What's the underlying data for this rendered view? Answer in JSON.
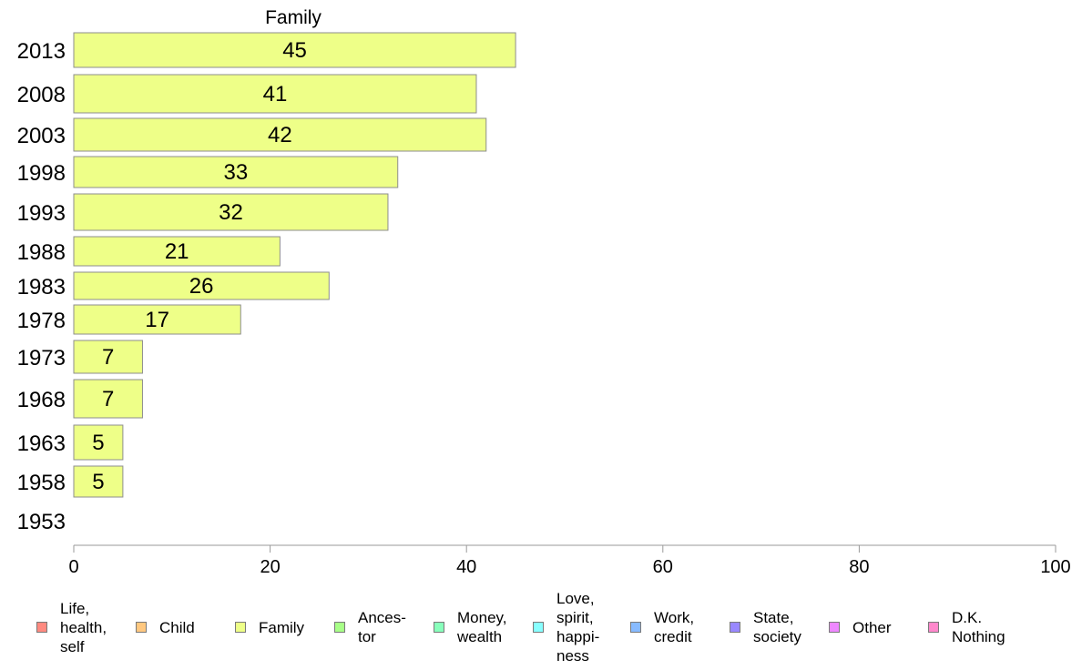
{
  "chart_data": {
    "type": "bar",
    "orientation": "horizontal",
    "title": "Family",
    "xlabel": "",
    "ylabel": "",
    "xlim": [
      0,
      100
    ],
    "x_ticks": [
      "0",
      "20",
      "40",
      "60",
      "80",
      "100"
    ],
    "categories": [
      "2013",
      "2008",
      "2003",
      "1998",
      "1993",
      "1988",
      "1983",
      "1978",
      "1973",
      "1968",
      "1963",
      "1958",
      "1953"
    ],
    "series": [
      {
        "name": "Family",
        "color": "#eeff88",
        "values": [
          45,
          41,
          42,
          33,
          32,
          21,
          26,
          17,
          7,
          7,
          5,
          5,
          null
        ],
        "labels": [
          "45",
          "41",
          "42",
          "33",
          "32",
          "21",
          "26",
          "17",
          "7",
          "7",
          "5",
          "5",
          ""
        ]
      }
    ],
    "grid": false,
    "legend_position": "bottom",
    "legend": [
      {
        "label": "Life,\nhealth,\nself",
        "color": "#ff8a80"
      },
      {
        "label": "Child",
        "color": "#ffc880"
      },
      {
        "label": "Family",
        "color": "#eeff88"
      },
      {
        "label": "Ances-\ntor",
        "color": "#a8ff88"
      },
      {
        "label": "Money,\nwealth",
        "color": "#88ffbb"
      },
      {
        "label": "Love,\nspirit,\nhappi-\nness",
        "color": "#88ffff"
      },
      {
        "label": "Work,\ncredit",
        "color": "#88bbff"
      },
      {
        "label": "State,\nsociety",
        "color": "#9988ff"
      },
      {
        "label": "Other",
        "color": "#ee88ff"
      },
      {
        "label": "D.K.\nNothing",
        "color": "#ff88cc"
      }
    ]
  }
}
